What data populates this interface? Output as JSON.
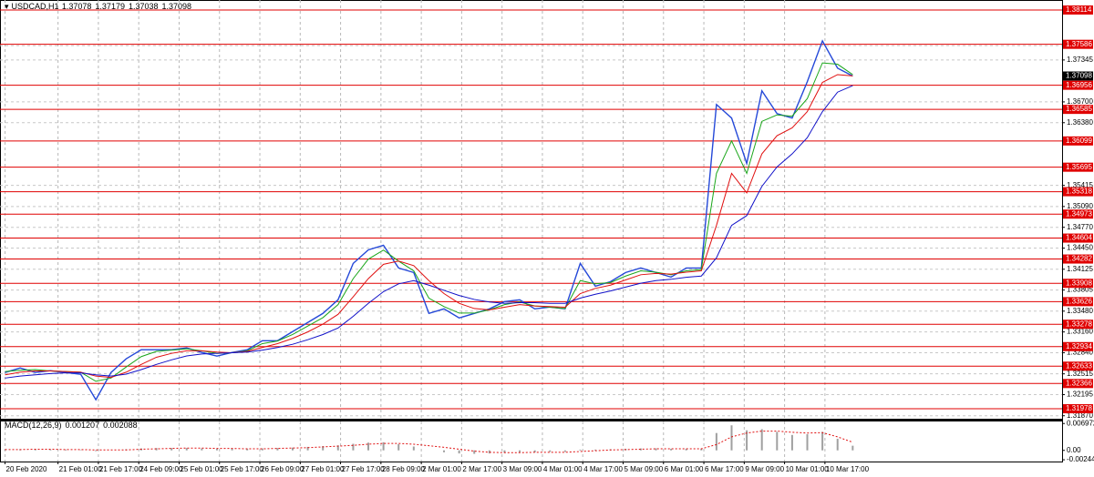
{
  "chart_data": {
    "type": "line",
    "title": "USDCAD,H1",
    "ohlc": {
      "open": 1.37078,
      "high": 1.37179,
      "low": 1.37038,
      "close": 1.37098
    },
    "x": [
      0,
      6,
      12,
      18,
      24,
      30,
      36,
      42,
      48,
      54,
      60,
      66,
      72,
      78,
      84,
      90,
      96,
      102,
      108,
      114,
      120,
      126,
      132,
      138,
      144,
      150,
      156,
      162,
      168,
      174,
      180,
      186,
      192,
      198,
      204,
      210,
      216,
      222,
      228,
      234,
      240,
      246,
      252,
      258,
      264,
      270,
      276,
      282,
      288,
      294,
      300,
      306,
      312,
      318,
      324,
      330,
      336
    ],
    "xlim": [
      -2,
      419
    ],
    "xticks": [
      {
        "value": 0,
        "label": "20 Feb 2020"
      },
      {
        "value": 21,
        "label": "21 Feb 01:00"
      },
      {
        "value": 37,
        "label": "21 Feb 17:00"
      },
      {
        "value": 53,
        "label": "24 Feb 09:00"
      },
      {
        "value": 69,
        "label": "25 Feb 01:00"
      },
      {
        "value": 85,
        "label": "25 Feb 17:00"
      },
      {
        "value": 101,
        "label": "26 Feb 09:00"
      },
      {
        "value": 117,
        "label": "27 Feb 01:00"
      },
      {
        "value": 133,
        "label": "27 Feb 17:00"
      },
      {
        "value": 149,
        "label": "28 Feb 09:00"
      },
      {
        "value": 165,
        "label": "2 Mar 01:00"
      },
      {
        "value": 181,
        "label": "2 Mar 17:00"
      },
      {
        "value": 197,
        "label": "3 Mar 09:00"
      },
      {
        "value": 213,
        "label": "4 Mar 01:00"
      },
      {
        "value": 229,
        "label": "4 Mar 17:00"
      },
      {
        "value": 245,
        "label": "5 Mar 09:00"
      },
      {
        "value": 261,
        "label": "6 Mar 01:00"
      },
      {
        "value": 277,
        "label": "6 Mar 17:00"
      },
      {
        "value": 293,
        "label": "9 Mar 09:00"
      },
      {
        "value": 309,
        "label": "10 Mar 01:00"
      },
      {
        "value": 325,
        "label": "10 Mar 17:00"
      }
    ],
    "ylim": [
      1.31824,
      1.38268
    ],
    "yticks": [
      1.37565,
      1.37345,
      {
        "value": 1.367,
        "label": "1.36700"
      },
      {
        "value": 1.3638,
        "label": "1.36380"
      },
      1.35415,
      {
        "value": 1.3509,
        "label": "1.35090"
      },
      {
        "value": 1.3477,
        "label": "1.34770"
      },
      {
        "value": 1.3445,
        "label": "1.34450"
      },
      1.34125,
      1.33805,
      {
        "value": 1.3348,
        "label": "1.33480"
      },
      {
        "value": 1.3316,
        "label": "1.33160"
      },
      {
        "value": 1.3284,
        "label": "1.32840"
      },
      1.32515,
      1.32195,
      {
        "value": 1.3187,
        "label": "1.31870"
      }
    ],
    "grid": true,
    "levels": [
      1.38114,
      1.37586,
      1.36956,
      1.36585,
      1.36099,
      1.35695,
      1.35318,
      1.34973,
      1.34604,
      1.34282,
      1.33908,
      1.33626,
      1.33278,
      1.32934,
      1.32633,
      1.32366,
      1.31978
    ],
    "level_color": "#e00000",
    "series": [
      {
        "color": "#2448d8",
        "values": [
          1.32536,
          1.32606,
          1.32536,
          1.32564,
          1.32536,
          1.32508,
          1.32117,
          1.32536,
          1.32746,
          1.32886,
          1.32886,
          1.32886,
          1.32914,
          1.32844,
          1.32788,
          1.32844,
          1.32886,
          1.33025,
          1.33025,
          1.33165,
          1.33305,
          1.33445,
          1.33655,
          1.34214,
          1.34423,
          1.34493,
          1.34144,
          1.34074,
          1.33445,
          1.33515,
          1.33375,
          1.33445,
          1.33515,
          1.33627,
          1.33655,
          1.33515,
          1.33543,
          1.33515,
          1.34214,
          1.33864,
          1.33934,
          1.34074,
          1.34144,
          1.34074,
          1.34004,
          1.34144,
          1.34144,
          1.3666,
          1.36451,
          1.35752,
          1.3687,
          1.3652,
          1.36451,
          1.3701,
          1.37639,
          1.37219,
          1.37098
        ]
      },
      {
        "color": "#1aa61a",
        "values": [
          1.3255,
          1.3257,
          1.3258,
          1.3256,
          1.3255,
          1.3254,
          1.324,
          1.3245,
          1.3262,
          1.3278,
          1.3286,
          1.3288,
          1.329,
          1.3287,
          1.3283,
          1.3284,
          1.3287,
          1.3298,
          1.3302,
          1.3312,
          1.3325,
          1.3338,
          1.3358,
          1.3398,
          1.3428,
          1.3442,
          1.3425,
          1.341,
          1.3368,
          1.3355,
          1.3345,
          1.3345,
          1.335,
          1.3358,
          1.3362,
          1.3356,
          1.3354,
          1.3352,
          1.3395,
          1.339,
          1.3392,
          1.3402,
          1.341,
          1.3408,
          1.3404,
          1.341,
          1.3412,
          1.356,
          1.361,
          1.356,
          1.364,
          1.365,
          1.3648,
          1.3675,
          1.373,
          1.3728,
          1.3712
        ]
      },
      {
        "color": "#e01010",
        "values": [
          1.325,
          1.3254,
          1.3256,
          1.3256,
          1.3255,
          1.3254,
          1.3248,
          1.3246,
          1.3254,
          1.3266,
          1.3277,
          1.3283,
          1.3287,
          1.3287,
          1.3285,
          1.3284,
          1.3286,
          1.3292,
          1.3298,
          1.3306,
          1.3316,
          1.3328,
          1.3343,
          1.337,
          1.3398,
          1.342,
          1.3425,
          1.3418,
          1.3395,
          1.3375,
          1.336,
          1.3352,
          1.335,
          1.3354,
          1.3358,
          1.3356,
          1.3355,
          1.3354,
          1.3375,
          1.3383,
          1.3388,
          1.3396,
          1.3404,
          1.3406,
          1.3405,
          1.3408,
          1.341,
          1.348,
          1.356,
          1.353,
          1.359,
          1.3618,
          1.363,
          1.3655,
          1.37,
          1.3712,
          1.371
        ]
      },
      {
        "color": "#1010c8",
        "values": [
          1.3245,
          1.3248,
          1.325,
          1.3252,
          1.3253,
          1.3253,
          1.325,
          1.3248,
          1.3251,
          1.3258,
          1.3266,
          1.3273,
          1.3279,
          1.3282,
          1.3283,
          1.3284,
          1.3285,
          1.3288,
          1.3292,
          1.3297,
          1.3304,
          1.3312,
          1.3322,
          1.334,
          1.336,
          1.3378,
          1.339,
          1.3395,
          1.3388,
          1.338,
          1.3372,
          1.3366,
          1.3362,
          1.336,
          1.3361,
          1.3361,
          1.336,
          1.336,
          1.3368,
          1.3374,
          1.3379,
          1.3385,
          1.3391,
          1.3395,
          1.3397,
          1.34,
          1.3402,
          1.343,
          1.348,
          1.3495,
          1.354,
          1.357,
          1.359,
          1.3615,
          1.3655,
          1.3685,
          1.3695
        ]
      }
    ],
    "macd": {
      "label": "MACD(12,26,9)",
      "shown_values": [
        0.001207,
        0.002088
      ],
      "ylim": [
        -0.0029,
        0.0075
      ],
      "yticks": [
        0.006972,
        {
          "value": 0,
          "label": "0.00"
        },
        -0.002444
      ],
      "histogram_color": "#a0a0a0",
      "signal_color": "#e01010",
      "histogram": [
        0.0002,
        0.0003,
        0.0003,
        0.0002,
        0.0002,
        0.0001,
        -0.0002,
        0,
        0.0003,
        0.0005,
        0.0006,
        0.0006,
        0.0006,
        0.0005,
        0.0004,
        0.0004,
        0.0004,
        0.0005,
        0.0006,
        0.0007,
        0.0009,
        0.0011,
        0.0013,
        0.0017,
        0.002,
        0.0021,
        0.0016,
        0.001,
        0,
        -0.0005,
        -0.0008,
        -0.0009,
        -0.0008,
        -0.0006,
        -0.0005,
        -0.0005,
        -0.0004,
        -0.0004,
        0.0002,
        0.0002,
        0.0003,
        0.0004,
        0.0005,
        0.0005,
        0.0004,
        0.0004,
        0.0004,
        0.0045,
        0.0065,
        0.0052,
        0.0055,
        0.0048,
        0.004,
        0.0042,
        0.0048,
        0.003,
        0.0012
      ],
      "signal": [
        0.0002,
        0.0002,
        0.0003,
        0.0003,
        0.0002,
        0.0002,
        0.0001,
        0.0001,
        0.0001,
        0.0003,
        0.0004,
        0.0005,
        0.0006,
        0.0006,
        0.0005,
        0.0005,
        0.0004,
        0.0004,
        0.0005,
        0.0006,
        0.0007,
        0.0009,
        0.0011,
        0.0013,
        0.0016,
        0.0018,
        0.0018,
        0.0016,
        0.0012,
        0.0008,
        0.0003,
        -0.0002,
        -0.0005,
        -0.0006,
        -0.0006,
        -0.0005,
        -0.0005,
        -0.0005,
        -0.0003,
        -0.0001,
        0.0001,
        0.0002,
        0.0003,
        0.0004,
        0.0004,
        0.0004,
        0.0004,
        0.0015,
        0.0035,
        0.0045,
        0.005,
        0.005,
        0.0047,
        0.0045,
        0.0046,
        0.0035,
        0.0021
      ]
    }
  }
}
